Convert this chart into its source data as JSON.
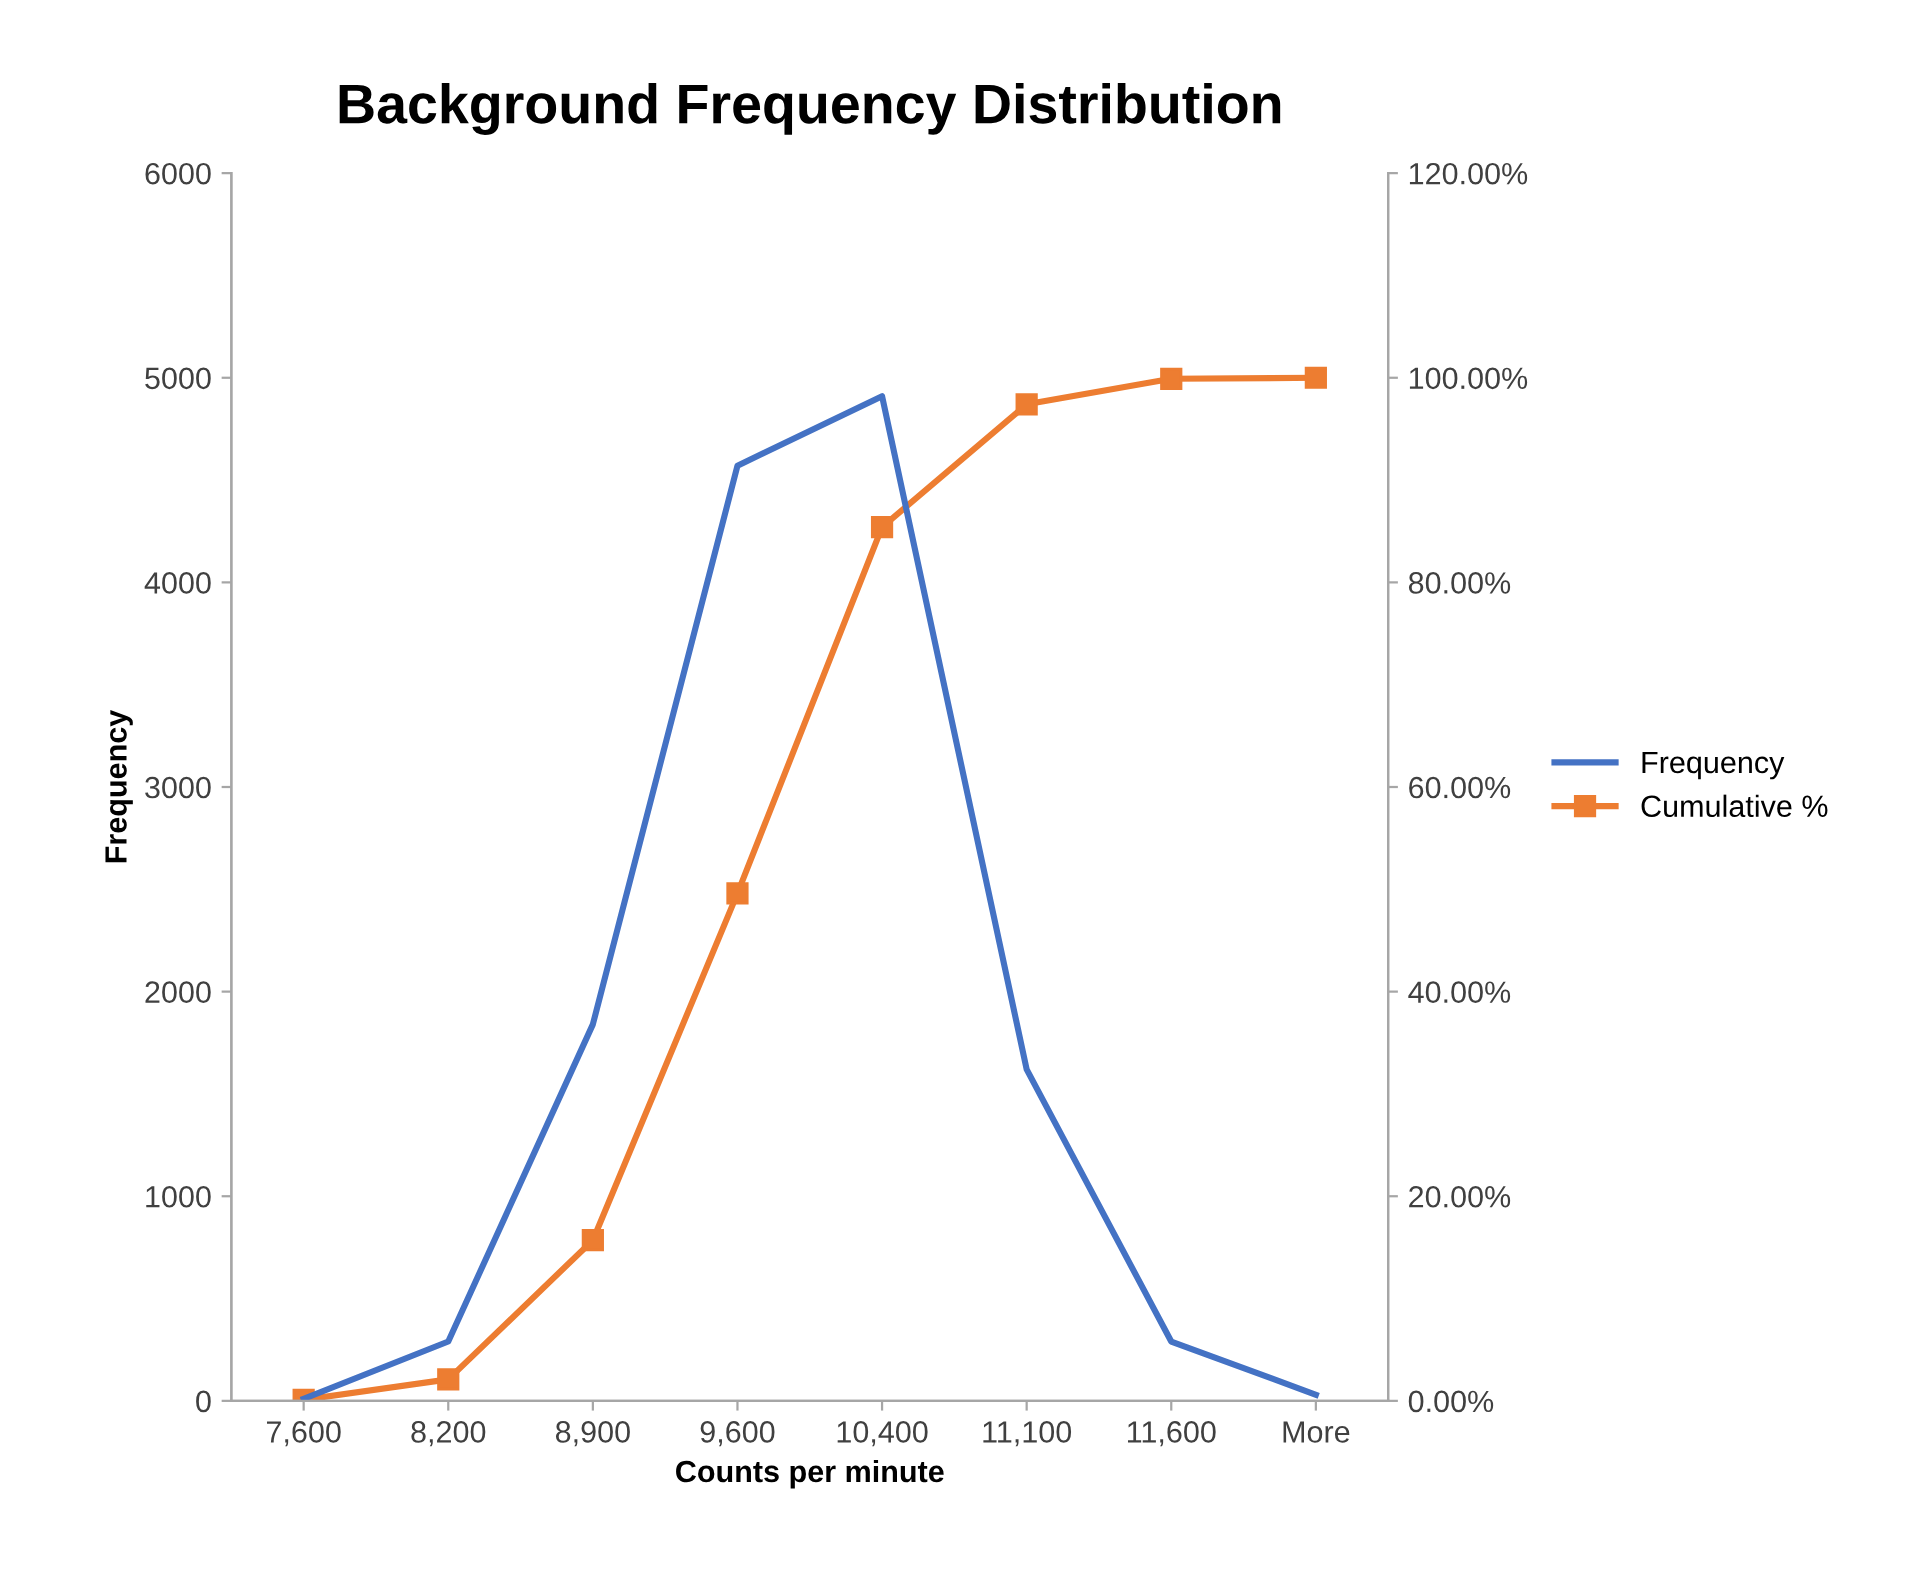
{
  "chart_data": {
    "type": "line",
    "title": "Background Frequency Distribution",
    "xlabel": "Counts per minute",
    "ylabel": "Frequency",
    "categories": [
      "7,600",
      "8,200",
      "8,900",
      "9,600",
      "10,400",
      "11,100",
      "11,600",
      "More"
    ],
    "series": [
      {
        "name": "Frequency",
        "color": "#4472c4",
        "values": [
          10,
          290,
          1840,
          4570,
          4910,
          1620,
          290,
          30
        ],
        "marker": "none"
      },
      {
        "name": "Cumulative %",
        "color": "#ed7d31",
        "axis": "y2",
        "marker": "square",
        "values": [
          0.1,
          2.1,
          15.7,
          49.6,
          85.4,
          97.4,
          99.9,
          100
        ]
      }
    ],
    "ylim": [
      0,
      6000
    ],
    "yticks": [
      0,
      1000,
      2000,
      3000,
      4000,
      5000,
      6000
    ],
    "y2lim": [
      0,
      120
    ],
    "y2ticks": [
      {
        "value": 0,
        "label": "0.00%"
      },
      {
        "value": 20,
        "label": "20.00%"
      },
      {
        "value": 40,
        "label": "40.00%"
      },
      {
        "value": 60,
        "label": "60.00%"
      },
      {
        "value": 80,
        "label": "80.00%"
      },
      {
        "value": 100,
        "label": "100.00%"
      },
      {
        "value": 120,
        "label": "120.00%"
      }
    ],
    "grid": false,
    "legend": "right"
  }
}
